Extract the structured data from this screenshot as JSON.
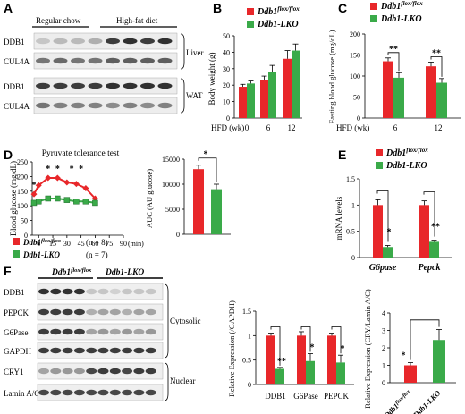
{
  "colors": {
    "red": "#e8272a",
    "green": "#3aaa49",
    "black": "#000000"
  },
  "panels": {
    "A": {
      "letter": "A",
      "groups": [
        "Regular  chow",
        "High-fat  diet"
      ],
      "rows": [
        "DDB1",
        "CUL4A",
        "DDB1",
        "CUL4A"
      ],
      "tissues": [
        "Liver",
        "WAT"
      ]
    },
    "B": {
      "letter": "B",
      "legend": [
        "Ddb1flox/flox",
        "Ddb1-LKO"
      ],
      "chart_data": {
        "type": "bar",
        "ylabel": "Body weight  (g)",
        "xlabel": "HFD (wk)",
        "categories": [
          "0",
          "6",
          "12"
        ],
        "yticks": [
          0,
          10,
          20,
          30,
          40,
          50
        ],
        "ylim": [
          0,
          50
        ],
        "series": [
          {
            "name": "Ddb1flox/flox",
            "values": [
              19,
              23,
              36
            ],
            "errors": [
              1.5,
              2.5,
              5
            ]
          },
          {
            "name": "Ddb1-LKO",
            "values": [
              21,
              28,
              41
            ],
            "errors": [
              1.5,
              4,
              4
            ]
          }
        ]
      }
    },
    "C": {
      "letter": "C",
      "legend": [
        "Ddb1flox/flox",
        "Ddb1-LKO"
      ],
      "chart_data": {
        "type": "bar",
        "ylabel": "Fasting blood glucose (mg/dL)",
        "xlabel": "HFD (wk)",
        "categories": [
          "6",
          "12"
        ],
        "yticks": [
          0,
          50,
          100,
          150,
          200
        ],
        "ylim": [
          0,
          200
        ],
        "series": [
          {
            "name": "Ddb1flox/flox",
            "values": [
              135,
              123
            ],
            "errors": [
              8,
              10
            ]
          },
          {
            "name": "Ddb1-LKO",
            "values": [
              96,
              84
            ],
            "errors": [
              12,
              10
            ]
          }
        ],
        "sig": [
          "**",
          "**"
        ]
      }
    },
    "D": {
      "letter": "D",
      "title": "Pyruvate tolerance test",
      "legend": [
        {
          "name": "Ddb1flox/flox",
          "n": "(n = 8)"
        },
        {
          "name": "Ddb1-LKO",
          "n": "(n = 7)"
        }
      ],
      "chart_data": {
        "type": "line",
        "ylabel": "Blood glucose  (mg/dL)",
        "xlabel": "(min)",
        "x": [
          0,
          15,
          30,
          45,
          60
        ],
        "xticks": [
          0,
          15,
          30,
          45,
          60,
          75,
          90
        ],
        "yticks": [
          0,
          50,
          100,
          150,
          200,
          250
        ],
        "ylim": [
          0,
          250
        ],
        "xlim": [
          -5,
          90
        ],
        "series": [
          {
            "name": "Ddb1flox/flox",
            "x": [
              -5,
              0,
              10,
              20,
              30,
              40,
              50,
              60
            ],
            "values": [
              140,
              170,
              195,
              195,
              180,
              175,
              160,
              125
            ]
          },
          {
            "name": "Ddb1-LKO",
            "x": [
              -5,
              0,
              10,
              20,
              30,
              40,
              50,
              60
            ],
            "values": [
              110,
              115,
              125,
              125,
              120,
              115,
              115,
              110
            ]
          }
        ],
        "sig_x": [
          -5,
          10,
          20,
          35,
          45
        ],
        "sig": [
          "*",
          "*",
          "*",
          "*",
          "*"
        ]
      },
      "auc": {
        "chart_data": {
          "type": "bar",
          "ylabel": "AUC (AU glucose)",
          "yticks": [
            0,
            5000,
            10000,
            15000
          ],
          "ylim": [
            0,
            15000
          ],
          "series": [
            {
              "name": "Ddb1flox/flox",
              "values": [
                13000
              ],
              "errors": [
                800
              ]
            },
            {
              "name": "Ddb1-LKO",
              "values": [
                9000
              ],
              "errors": [
                1000
              ]
            }
          ],
          "sig": [
            "*"
          ]
        }
      }
    },
    "E": {
      "letter": "E",
      "legend": [
        "Ddb1flox/flox",
        "Ddb1-LKO"
      ],
      "chart_data": {
        "type": "bar",
        "ylabel": "mRNA  levels",
        "categories": [
          "G6pase",
          "Pepck"
        ],
        "yticks": [
          0,
          0.5,
          1,
          1.5
        ],
        "ylim": [
          0,
          1.5
        ],
        "series": [
          {
            "name": "Ddb1flox/flox",
            "values": [
              1.0,
              1.0
            ],
            "errors": [
              0.1,
              0.08
            ]
          },
          {
            "name": "Ddb1-LKO",
            "values": [
              0.2,
              0.3
            ],
            "errors": [
              0.03,
              0.03
            ]
          }
        ],
        "sig": [
          "*",
          "**"
        ]
      }
    },
    "F": {
      "letter": "F",
      "groups": [
        "Ddb1flox/flox",
        "Ddb1-LKO"
      ],
      "rows": [
        "DDB1",
        "PEPCK",
        "G6Pase",
        "GAPDH",
        "CRY1",
        "Lamin  A/C"
      ],
      "fractions": [
        "Cytosolic",
        "Nuclear"
      ],
      "chart1": {
        "chart_data": {
          "type": "bar",
          "ylabel": "Relative  Expression (/GAPDH)",
          "categories": [
            "DDB1",
            "G6Pase",
            "PEPCK"
          ],
          "yticks": [
            0,
            0.5,
            1,
            1.5
          ],
          "ylim": [
            0,
            1.5
          ],
          "series": [
            {
              "name": "Ddb1flox/flox",
              "values": [
                1.0,
                1.0,
                1.0
              ],
              "errors": [
                0.05,
                0.08,
                0.05
              ]
            },
            {
              "name": "Ddb1-LKO",
              "values": [
                0.32,
                0.48,
                0.45
              ],
              "errors": [
                0.03,
                0.15,
                0.15
              ]
            }
          ],
          "sig": [
            "**",
            "*",
            "*"
          ]
        }
      },
      "chart2": {
        "chart_data": {
          "type": "bar",
          "ylabel": "Relative  Expression (CRY/Lamin A/C)",
          "categories": [
            "Ddb1flox/flox",
            "Ddb1-LKO"
          ],
          "yticks": [
            0,
            1,
            2,
            3,
            4
          ],
          "ylim": [
            0,
            4
          ],
          "values": [
            1.0,
            2.45
          ],
          "errors": [
            0.15,
            0.6
          ],
          "sig": [
            "*"
          ]
        }
      }
    }
  }
}
